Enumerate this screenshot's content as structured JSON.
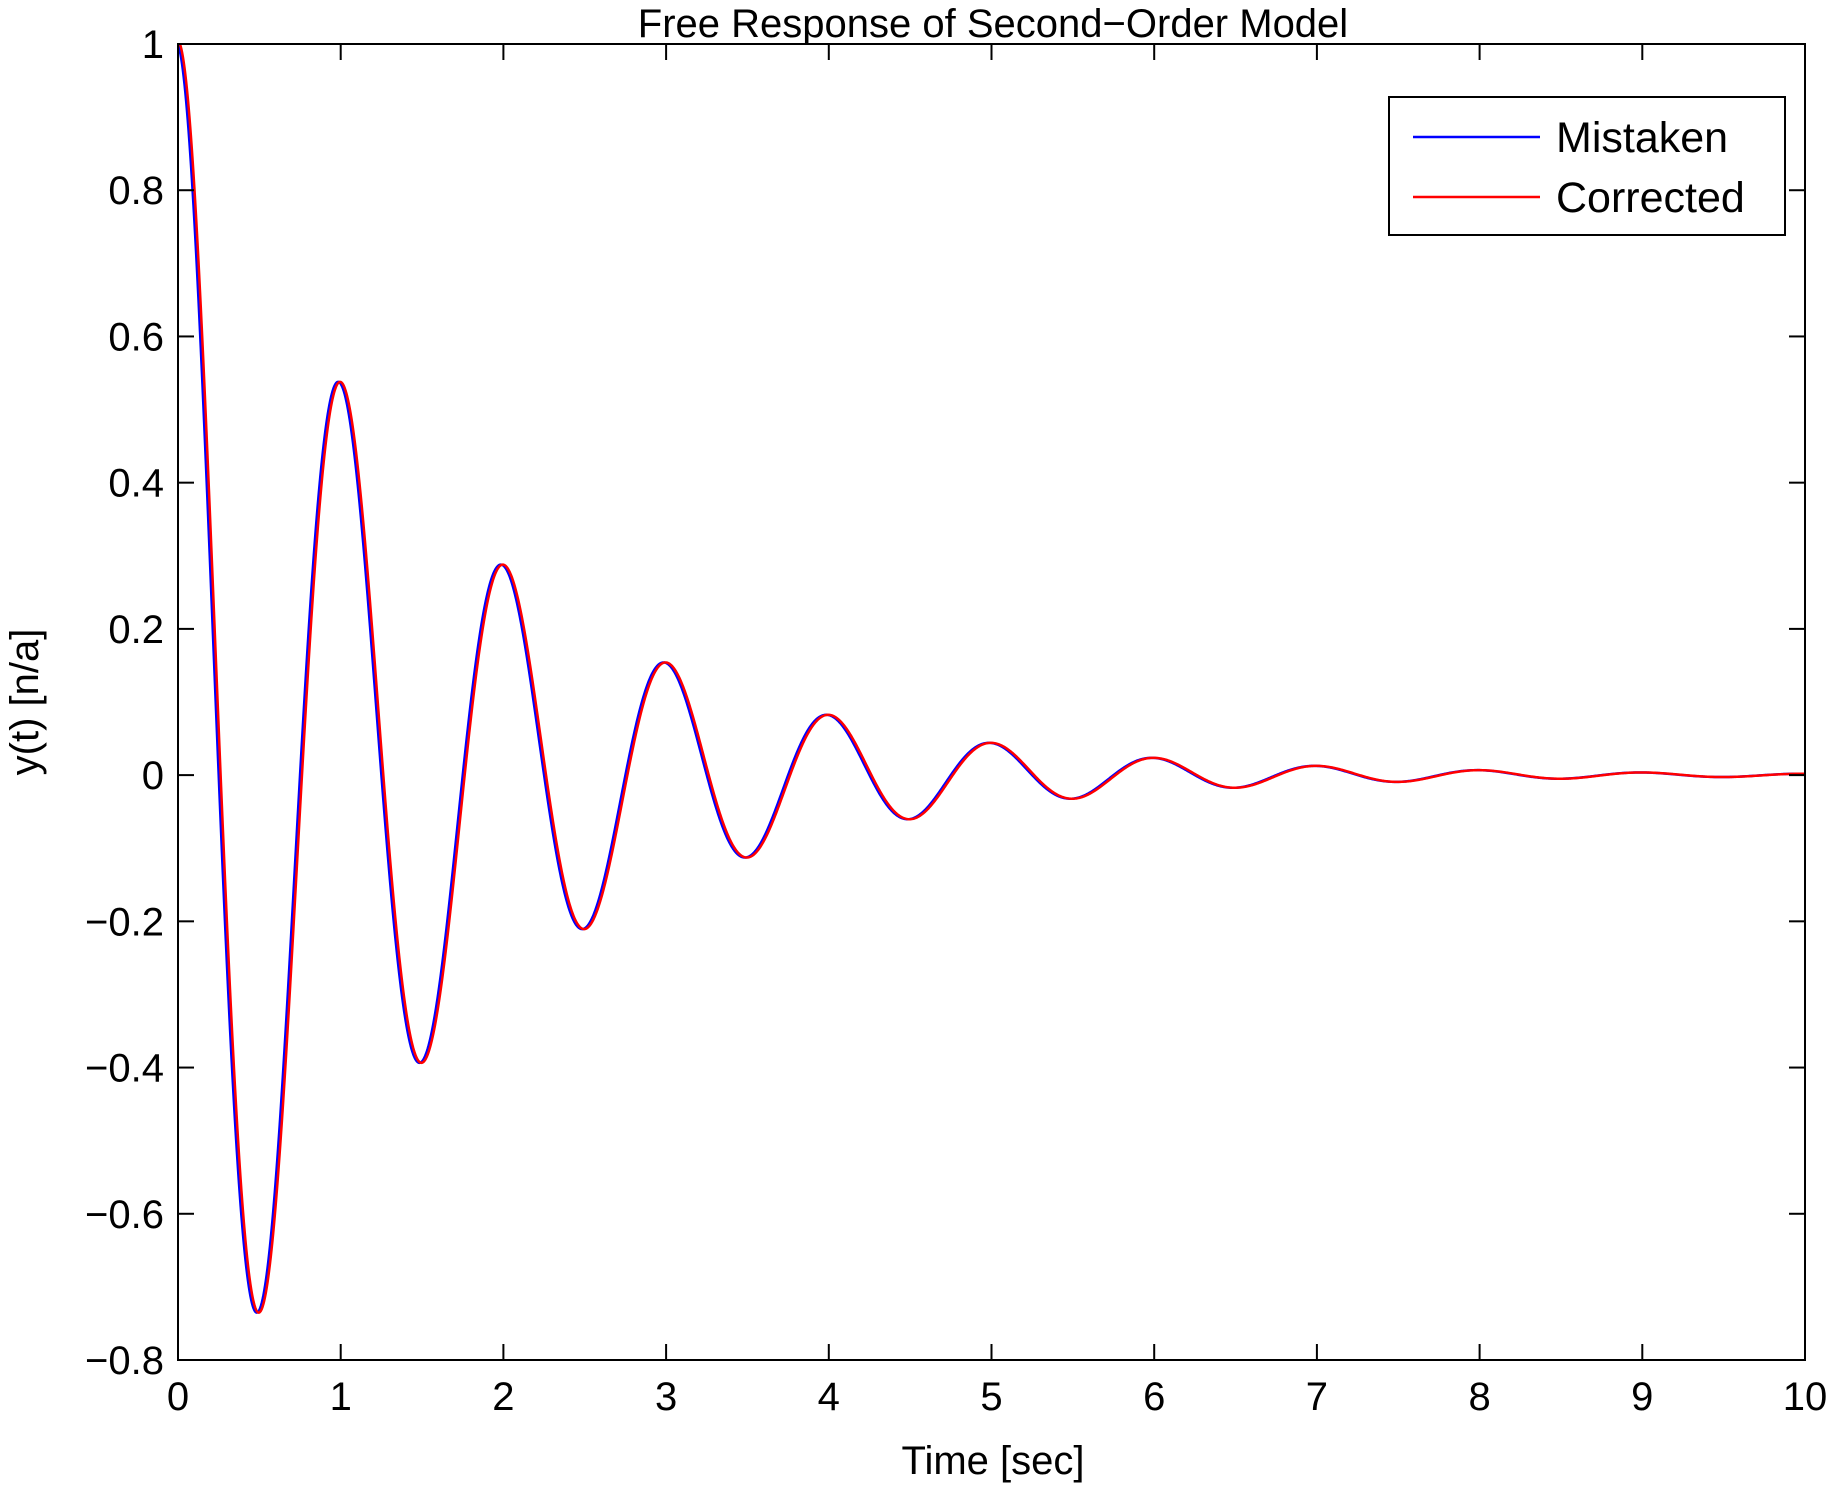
{
  "chart_data": {
    "type": "line",
    "title": "Free Response of Second−Order Model",
    "xlabel": "Time [sec]",
    "ylabel": "y(t) [n/a]",
    "xlim": [
      0,
      10
    ],
    "ylim": [
      -0.8,
      1
    ],
    "xticks": [
      0,
      1,
      2,
      3,
      4,
      5,
      6,
      7,
      8,
      9,
      10
    ],
    "xtick_labels": [
      "0",
      "1",
      "2",
      "3",
      "4",
      "5",
      "6",
      "7",
      "8",
      "9",
      "10"
    ],
    "yticks": [
      -0.8,
      -0.6,
      -0.4,
      -0.2,
      0,
      0.2,
      0.4,
      0.6,
      0.8,
      1
    ],
    "ytick_labels": [
      "−0.8",
      "−0.6",
      "−0.4",
      "−0.2",
      "0",
      "0.2",
      "0.4",
      "0.6",
      "0.8",
      "1"
    ],
    "grid": false,
    "legend_position": "top-right",
    "series": [
      {
        "name": "Mistaken",
        "color": "#0000ff",
        "model": {
          "amplitude": 1.0,
          "decay": 0.625,
          "frequency_hz": 1.0,
          "phase_offset_sec": 0.0
        },
        "samples": [
          [
            0,
            1.0
          ],
          [
            0.5,
            -0.73
          ],
          [
            1.0,
            0.535
          ],
          [
            1.5,
            -0.39
          ],
          [
            2.0,
            0.285
          ],
          [
            2.5,
            -0.208
          ],
          [
            3.0,
            0.152
          ],
          [
            3.5,
            -0.111
          ],
          [
            4.0,
            0.081
          ],
          [
            4.5,
            -0.059
          ],
          [
            5.0,
            0.043
          ],
          [
            5.5,
            -0.031
          ],
          [
            6.0,
            0.023
          ],
          [
            6.5,
            -0.017
          ],
          [
            7.0,
            0.012
          ],
          [
            7.5,
            -0.009
          ],
          [
            8.0,
            0.006
          ],
          [
            8.5,
            -0.004
          ],
          [
            9.0,
            0.003
          ],
          [
            9.5,
            -0.002
          ],
          [
            10.0,
            0.002
          ]
        ]
      },
      {
        "name": "Corrected",
        "color": "#ff0000",
        "model": {
          "amplitude": 1.0,
          "decay": 0.625,
          "frequency_hz": 1.0,
          "phase_offset_sec": 0.012
        },
        "samples": [
          [
            0,
            1.0
          ],
          [
            0.51,
            -0.73
          ],
          [
            1.01,
            0.532
          ],
          [
            1.51,
            -0.388
          ],
          [
            2.01,
            0.284
          ],
          [
            2.51,
            -0.207
          ],
          [
            3.01,
            0.151
          ],
          [
            3.51,
            -0.11
          ],
          [
            4.01,
            0.08
          ],
          [
            4.51,
            -0.058
          ],
          [
            5.01,
            0.043
          ],
          [
            5.51,
            -0.031
          ],
          [
            6.01,
            0.023
          ],
          [
            6.51,
            -0.017
          ],
          [
            7.01,
            0.012
          ],
          [
            7.51,
            -0.009
          ],
          [
            8.01,
            0.006
          ],
          [
            8.51,
            -0.004
          ],
          [
            9.01,
            0.003
          ],
          [
            9.51,
            -0.002
          ],
          [
            10.0,
            0.002
          ]
        ]
      }
    ]
  }
}
